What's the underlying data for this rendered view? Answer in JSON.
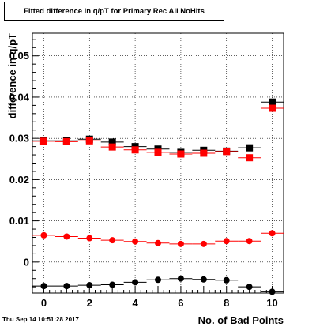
{
  "chart_data": {
    "type": "scatter",
    "title": "Fitted difference in q/pT for Primary Rec All NoHits",
    "xlabel": "No. of Bad Points",
    "ylabel": "difference in q/pT",
    "xlim": [
      -0.5,
      10.5
    ],
    "ylim": [
      -0.0075,
      0.0555
    ],
    "x_ticks": [
      0,
      2,
      4,
      6,
      8,
      10
    ],
    "y_ticks": [
      0,
      0.01,
      0.02,
      0.03,
      0.04,
      0.05
    ],
    "y_tick_labels": [
      "0",
      "0.01",
      "0.02",
      "0.03",
      "0.04",
      "0.05"
    ],
    "grid": true,
    "series": [
      {
        "color": "#000000",
        "marker": "square",
        "x": [
          0,
          1,
          2,
          3,
          4,
          5,
          6,
          7,
          8,
          9,
          10
        ],
        "y": [
          0.0294,
          0.0294,
          0.0298,
          0.0291,
          0.028,
          0.0274,
          0.0266,
          0.0271,
          0.0269,
          0.0277,
          0.0388
        ]
      },
      {
        "color": "#ff0000",
        "marker": "square",
        "x": [
          0,
          1,
          2,
          3,
          4,
          5,
          6,
          7,
          8,
          9,
          10
        ],
        "y": [
          0.0293,
          0.0292,
          0.0294,
          0.0279,
          0.0272,
          0.0266,
          0.0262,
          0.0264,
          0.0268,
          0.0253,
          0.0373
        ]
      },
      {
        "color": "#ff0000",
        "marker": "circle",
        "x": [
          0,
          1,
          2,
          3,
          4,
          5,
          6,
          7,
          8,
          9,
          10
        ],
        "y": [
          0.0065,
          0.0062,
          0.0058,
          0.0053,
          0.005,
          0.0046,
          0.0044,
          0.0044,
          0.0051,
          0.0051,
          0.007
        ]
      },
      {
        "color": "#000000",
        "marker": "circle",
        "x": [
          0,
          1,
          2,
          3,
          4,
          5,
          6,
          7,
          8,
          9,
          10
        ],
        "y": [
          -0.0058,
          -0.0058,
          -0.0056,
          -0.0055,
          -0.0049,
          -0.0043,
          -0.004,
          -0.0042,
          -0.0044,
          -0.006,
          -0.0072
        ]
      }
    ]
  },
  "footer": {
    "timestamp": "Thu Sep 14 10:51:28 2017"
  },
  "colors": {
    "frame": "#000000",
    "grid": "#000000"
  }
}
